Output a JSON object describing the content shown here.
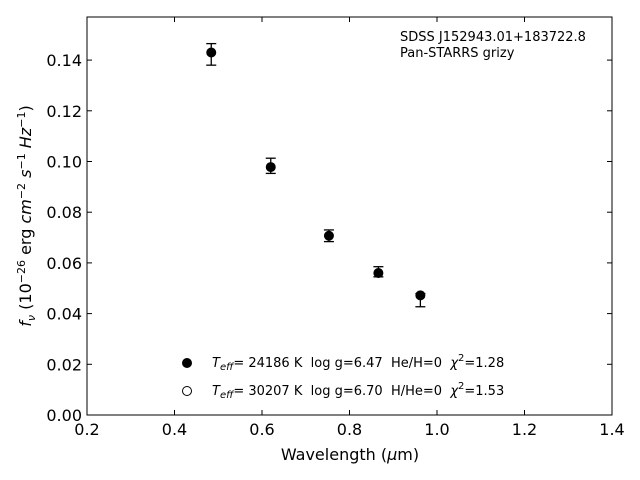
{
  "chart_data": {
    "type": "scatter",
    "xlabel": "Wavelength (μm)",
    "ylabel": "f_ν (10^-26 erg cm^-2 s^-1 Hz^-1)",
    "xlim": [
      0.2,
      1.4
    ],
    "ylim": [
      0.0,
      0.157
    ],
    "xticks": [
      "0.2",
      "0.4",
      "0.6",
      "0.8",
      "1.0",
      "1.2",
      "1.4"
    ],
    "yticks": [
      "0.00",
      "0.02",
      "0.04",
      "0.06",
      "0.08",
      "0.10",
      "0.12",
      "0.14"
    ],
    "grid": false,
    "annotation": {
      "line1": "SDSS J152943.01+183722.8",
      "line2": "Pan-STARRS grizy"
    },
    "legend_position": "bottom-center",
    "legend": [
      {
        "marker": "filled",
        "teff": "= 24186 K",
        "rest": "  log g=6.47  He/H=0  ",
        "chi": "=1.28"
      },
      {
        "marker": "open",
        "teff": "= 30207 K",
        "rest": "  log g=6.70  H/He=0  ",
        "chi": "=1.53"
      }
    ],
    "points": [
      {
        "x": 0.484,
        "y": 0.143,
        "err_up": 0.0035,
        "err_down": 0.005
      },
      {
        "x": 0.62,
        "y": 0.0978,
        "err_up": 0.0035,
        "err_down": 0.0025
      },
      {
        "x": 0.753,
        "y": 0.0707,
        "err_up": 0.0023,
        "err_down": 0.0023
      },
      {
        "x": 0.866,
        "y": 0.056,
        "err_up": 0.0025,
        "err_down": 0.0015
      },
      {
        "x": 0.962,
        "y": 0.0472,
        "err_up": 0.0007,
        "err_down": 0.0045
      }
    ]
  }
}
